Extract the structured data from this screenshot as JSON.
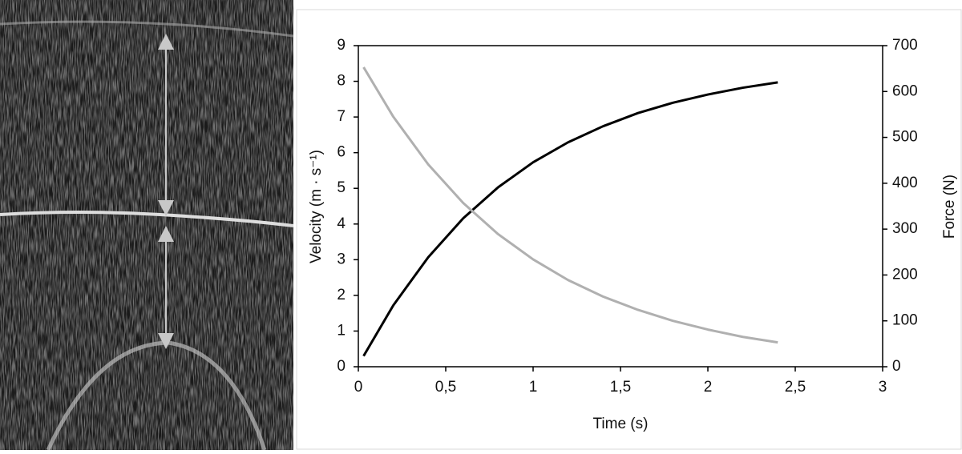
{
  "chart_data": {
    "type": "line",
    "x_label": "Time (s)",
    "y_label": "Velocity (m · s⁻¹)",
    "y2_label": "Force (N)",
    "x": [
      0.03,
      0.2,
      0.4,
      0.6,
      0.8,
      1.0,
      1.2,
      1.4,
      1.6,
      1.8,
      2.0,
      2.2,
      2.4
    ],
    "series": [
      {
        "color": "#000000",
        "values": [
          0.3,
          1.72,
          3.07,
          4.16,
          5.03,
          5.73,
          6.29,
          6.74,
          7.11,
          7.4,
          7.63,
          7.82,
          7.97
        ]
      },
      {
        "color": "#b0b0b0",
        "axis": "y2",
        "values": [
          653,
          545,
          441,
          357,
          289,
          234,
          189,
          153,
          124,
          100,
          81,
          65,
          53
        ]
      }
    ],
    "xlim": [
      0,
      3
    ],
    "xticks": [
      0,
      {
        "value": 0.5,
        "label": "0,5"
      },
      1,
      {
        "value": 1.5,
        "label": "1,5"
      },
      2,
      {
        "value": 2.5,
        "label": "2,5"
      },
      3
    ],
    "ylim": [
      0,
      9
    ],
    "yticks": [
      0,
      1,
      2,
      3,
      4,
      5,
      6,
      7,
      8,
      9
    ],
    "y2lim": [
      0,
      700
    ],
    "y2ticks": [
      0,
      100,
      200,
      300,
      400,
      500,
      600,
      700
    ],
    "grid": false
  }
}
